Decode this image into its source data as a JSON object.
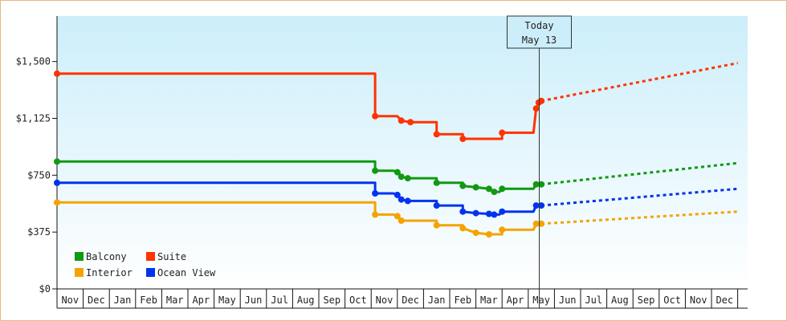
{
  "chart_data": {
    "type": "line",
    "title": "",
    "xlabel": "",
    "ylabel": "",
    "ylim": [
      0,
      1800
    ],
    "y_ticks": [
      {
        "value": 0,
        "label": "$0"
      },
      {
        "value": 375,
        "label": "$375"
      },
      {
        "value": 750,
        "label": "$750"
      },
      {
        "value": 1125,
        "label": "$1,125"
      },
      {
        "value": 1500,
        "label": "$1,500"
      }
    ],
    "x_months": [
      "Nov",
      "Dec",
      "Jan",
      "Feb",
      "Mar",
      "Apr",
      "May",
      "Jun",
      "Jul",
      "Aug",
      "Sep",
      "Oct",
      "Nov",
      "Dec",
      "Jan",
      "Feb",
      "Mar",
      "Apr",
      "May",
      "Jun",
      "Jul",
      "Aug",
      "Sep",
      "Oct",
      "Nov",
      "Dec"
    ],
    "today": {
      "line1": "Today",
      "line2": "May 13",
      "month_index": 18.42
    },
    "legend": [
      {
        "label": "Balcony",
        "color": "#119911"
      },
      {
        "label": "Suite",
        "color": "#ff3300"
      },
      {
        "label": "Interior",
        "color": "#f5a300"
      },
      {
        "label": "Ocean View",
        "color": "#0033ee"
      }
    ],
    "series": [
      {
        "name": "Suite",
        "color": "#ff3300",
        "points": [
          [
            0,
            1420
          ],
          [
            12.15,
            1420
          ],
          [
            12.15,
            1140
          ],
          [
            13.0,
            1140
          ],
          [
            13.15,
            1110
          ],
          [
            13.5,
            1100
          ],
          [
            14.5,
            1100
          ],
          [
            14.5,
            1020
          ],
          [
            15.5,
            1020
          ],
          [
            15.5,
            990
          ],
          [
            16.0,
            990
          ],
          [
            16.5,
            990
          ],
          [
            17.0,
            990
          ],
          [
            17.0,
            1030
          ],
          [
            18.2,
            1030
          ],
          [
            18.3,
            1190
          ],
          [
            18.4,
            1230
          ],
          [
            18.5,
            1240
          ]
        ]
      },
      {
        "name": "Balcony",
        "color": "#119911",
        "points": [
          [
            0,
            840
          ],
          [
            12.15,
            840
          ],
          [
            12.15,
            780
          ],
          [
            12.85,
            780
          ],
          [
            13.0,
            770
          ],
          [
            13.15,
            740
          ],
          [
            13.4,
            730
          ],
          [
            14.5,
            730
          ],
          [
            14.5,
            700
          ],
          [
            15.5,
            700
          ],
          [
            15.5,
            680
          ],
          [
            16.0,
            670
          ],
          [
            16.5,
            660
          ],
          [
            16.7,
            640
          ],
          [
            16.9,
            640
          ],
          [
            17.0,
            660
          ],
          [
            18.2,
            660
          ],
          [
            18.3,
            690
          ],
          [
            18.5,
            690
          ]
        ]
      },
      {
        "name": "Ocean View",
        "color": "#0033ee",
        "points": [
          [
            0,
            700
          ],
          [
            12.15,
            700
          ],
          [
            12.15,
            630
          ],
          [
            12.85,
            630
          ],
          [
            13.0,
            620
          ],
          [
            13.15,
            590
          ],
          [
            13.4,
            580
          ],
          [
            14.5,
            580
          ],
          [
            14.5,
            550
          ],
          [
            15.5,
            550
          ],
          [
            15.5,
            510
          ],
          [
            16.0,
            500
          ],
          [
            16.5,
            495
          ],
          [
            16.7,
            490
          ],
          [
            16.9,
            490
          ],
          [
            17.0,
            510
          ],
          [
            18.2,
            510
          ],
          [
            18.3,
            550
          ],
          [
            18.5,
            550
          ]
        ]
      },
      {
        "name": "Interior",
        "color": "#f5a300",
        "points": [
          [
            0,
            570
          ],
          [
            12.15,
            570
          ],
          [
            12.15,
            490
          ],
          [
            12.85,
            490
          ],
          [
            13.0,
            480
          ],
          [
            13.15,
            450
          ],
          [
            13.4,
            450
          ],
          [
            14.5,
            450
          ],
          [
            14.5,
            420
          ],
          [
            15.5,
            420
          ],
          [
            15.5,
            400
          ],
          [
            16.0,
            370
          ],
          [
            16.5,
            360
          ],
          [
            17.0,
            360
          ],
          [
            17.0,
            390
          ],
          [
            18.2,
            390
          ],
          [
            18.3,
            430
          ],
          [
            18.5,
            430
          ]
        ]
      }
    ],
    "projections": [
      {
        "name": "Suite",
        "color": "#ff3300",
        "points": [
          [
            18.5,
            1240
          ],
          [
            26,
            1490
          ]
        ]
      },
      {
        "name": "Balcony",
        "color": "#119911",
        "points": [
          [
            18.5,
            690
          ],
          [
            26,
            830
          ]
        ]
      },
      {
        "name": "Ocean View",
        "color": "#0033ee",
        "points": [
          [
            18.5,
            550
          ],
          [
            26,
            660
          ]
        ]
      },
      {
        "name": "Interior",
        "color": "#f5a300",
        "points": [
          [
            18.5,
            430
          ],
          [
            26,
            510
          ]
        ]
      }
    ],
    "grid": false,
    "legend_placement": "bottom-left"
  }
}
